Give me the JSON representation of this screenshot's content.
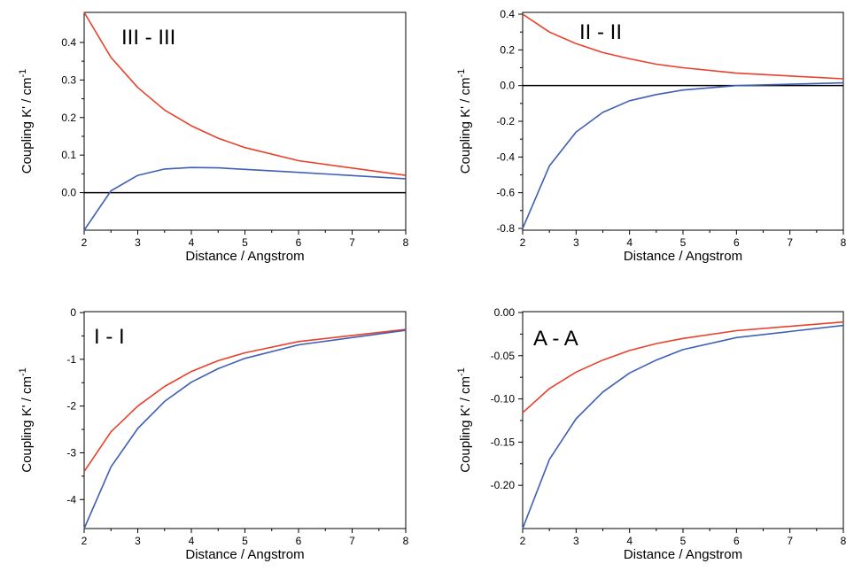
{
  "chart_data": [
    {
      "type": "line",
      "title": "III - III",
      "xlabel": "Distance / Angstrom",
      "ylabel": "Coupling K' / cm",
      "ylabel_sup": "-1",
      "xlim": [
        2,
        8
      ],
      "ylim": [
        -0.1,
        0.48
      ],
      "x_ticks": [
        2,
        3,
        4,
        5,
        6,
        7,
        8
      ],
      "y_ticks": [
        0.0,
        0.1,
        0.2,
        0.3,
        0.4
      ],
      "y_tick_labels": [
        "0.0",
        "0.1",
        "0.2",
        "0.3",
        "0.4"
      ],
      "zero_line": true,
      "grid": false,
      "x": [
        2,
        2.5,
        3,
        3.5,
        4,
        4.5,
        5,
        6,
        8
      ],
      "series": [
        {
          "color": "#e8402a",
          "values": [
            0.48,
            0.36,
            0.28,
            0.22,
            0.178,
            0.145,
            0.12,
            0.085,
            0.046
          ]
        },
        {
          "color": "#3f5fb5",
          "values": [
            -0.1,
            0.005,
            0.046,
            0.063,
            0.067,
            0.066,
            0.062,
            0.054,
            0.037
          ]
        }
      ]
    },
    {
      "type": "line",
      "title": "II - II",
      "xlabel": "Distance / Angstrom",
      "ylabel": "Coupling K' / cm",
      "ylabel_sup": "-1",
      "xlim": [
        2,
        8
      ],
      "ylim": [
        -0.81,
        0.41
      ],
      "x_ticks": [
        2,
        3,
        4,
        5,
        6,
        7,
        8
      ],
      "y_ticks": [
        -0.8,
        -0.6,
        -0.4,
        -0.2,
        0.0,
        0.2,
        0.4
      ],
      "y_tick_labels": [
        "-0.8",
        "-0.6",
        "-0.4",
        "-0.2",
        "0.0",
        "0.2",
        "0.4"
      ],
      "zero_line": true,
      "grid": false,
      "x": [
        2,
        2.5,
        3,
        3.5,
        4,
        4.5,
        5,
        6,
        8
      ],
      "series": [
        {
          "color": "#e8402a",
          "values": [
            0.4,
            0.3,
            0.235,
            0.185,
            0.15,
            0.12,
            0.1,
            0.07,
            0.038
          ]
        },
        {
          "color": "#3f5fb5",
          "values": [
            -0.8,
            -0.45,
            -0.26,
            -0.15,
            -0.085,
            -0.05,
            -0.025,
            0.0,
            0.015
          ]
        }
      ]
    },
    {
      "type": "line",
      "title": "I - I",
      "xlabel": "Distance / Angstrom",
      "ylabel": "Coupling K' / cm",
      "ylabel_sup": "-1",
      "xlim": [
        2,
        8
      ],
      "ylim": [
        -4.62,
        0.02
      ],
      "x_ticks": [
        2,
        3,
        4,
        5,
        6,
        7,
        8
      ],
      "y_ticks": [
        -4,
        -3,
        -2,
        -1,
        0
      ],
      "y_tick_labels": [
        "-4",
        "-3",
        "-2",
        "-1",
        "0"
      ],
      "zero_line": false,
      "grid": false,
      "x": [
        2,
        2.5,
        3,
        3.5,
        4,
        4.5,
        5,
        6,
        8
      ],
      "series": [
        {
          "color": "#e8402a",
          "values": [
            -3.4,
            -2.55,
            -2.0,
            -1.58,
            -1.26,
            -1.03,
            -0.86,
            -0.62,
            -0.36
          ]
        },
        {
          "color": "#3f5fb5",
          "values": [
            -4.62,
            -3.3,
            -2.48,
            -1.9,
            -1.49,
            -1.2,
            -0.98,
            -0.69,
            -0.38
          ]
        }
      ]
    },
    {
      "type": "line",
      "title": "A - A",
      "xlabel": "Distance / Angstrom",
      "ylabel": "Coupling K' / cm",
      "ylabel_sup": "-1",
      "xlim": [
        2,
        8
      ],
      "ylim": [
        -0.25,
        0.001
      ],
      "x_ticks": [
        2,
        3,
        4,
        5,
        6,
        7,
        8
      ],
      "y_ticks": [
        -0.2,
        -0.15,
        -0.1,
        -0.05,
        0.0
      ],
      "y_tick_labels": [
        "-0.20",
        "-0.15",
        "-0.10",
        "-0.05",
        "0.00"
      ],
      "zero_line": false,
      "grid": false,
      "x": [
        2,
        2.5,
        3,
        3.5,
        4,
        4.5,
        5,
        6,
        8
      ],
      "series": [
        {
          "color": "#e8402a",
          "values": [
            -0.116,
            -0.088,
            -0.069,
            -0.055,
            -0.044,
            -0.036,
            -0.03,
            -0.021,
            -0.011
          ]
        },
        {
          "color": "#3f5fb5",
          "values": [
            -0.25,
            -0.17,
            -0.123,
            -0.092,
            -0.07,
            -0.055,
            -0.043,
            -0.029,
            -0.015
          ]
        }
      ]
    }
  ]
}
